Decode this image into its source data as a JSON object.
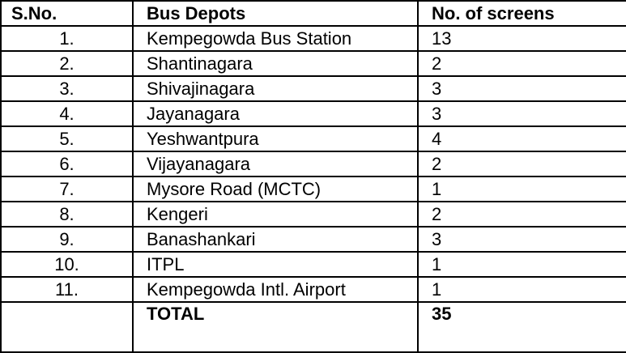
{
  "table": {
    "header": [
      "S.No.",
      "Bus Depots",
      "No. of screens"
    ],
    "rows": [
      [
        "1.",
        "Kempegowda Bus Station",
        13
      ],
      [
        "2.",
        "Shantinagara",
        2
      ],
      [
        "3.",
        "Shivajinagara",
        3
      ],
      [
        "4.",
        "Jayanagara",
        3
      ],
      [
        "5.",
        "Yeshwantpura",
        4
      ],
      [
        "6.",
        "Vijayanagara",
        2
      ],
      [
        "7.",
        "Mysore Road (MCTC)",
        1
      ],
      [
        "8.",
        "Kengeri",
        2
      ],
      [
        "9.",
        "Banashankari",
        3
      ],
      [
        "10.",
        "ITPL",
        1
      ],
      [
        "11.",
        "Kempegowda Intl. Airport",
        1
      ]
    ],
    "total": {
      "label": "TOTAL",
      "value": 35
    }
  }
}
